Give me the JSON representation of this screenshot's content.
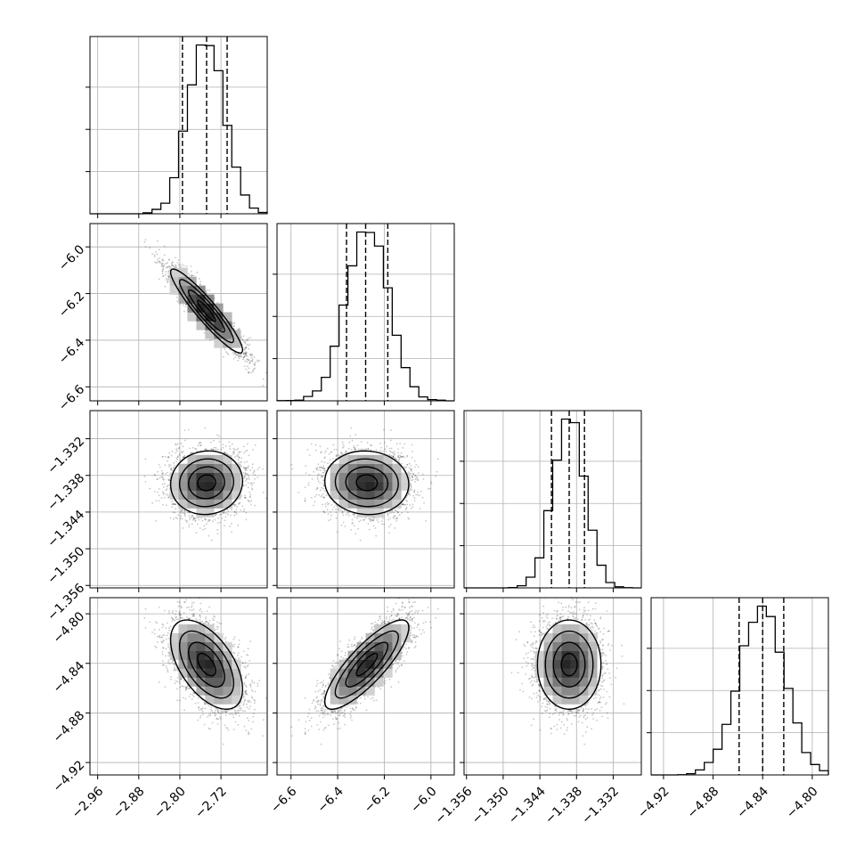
{
  "chart_data": {
    "type": "corner",
    "grid": true,
    "parameters": [
      {
        "range": [
          -2.975,
          -2.63
        ],
        "ticks": [
          -2.96,
          -2.88,
          -2.8,
          -2.72
        ],
        "tick_labels": [
          "−2.96",
          "−2.88",
          "−2.80",
          "−2.72"
        ],
        "quantiles": [
          -2.795,
          -2.748,
          -2.708
        ],
        "mean": -2.748,
        "sd": 0.035
      },
      {
        "range": [
          -6.66,
          -5.9
        ],
        "ticks": [
          -6.6,
          -6.4,
          -6.2,
          -6.0
        ],
        "tick_labels": [
          "−6.6",
          "−6.4",
          "−6.2",
          "−6.0"
        ],
        "quantiles": [
          -6.362,
          -6.28,
          -6.185
        ],
        "mean": -6.275,
        "sd": 0.09
      },
      {
        "range": [
          -1.3564,
          -1.3274
        ],
        "ticks": [
          -1.356,
          -1.35,
          -1.344,
          -1.338,
          -1.332
        ],
        "tick_labels": [
          "−1.356",
          "−1.350",
          "−1.344",
          "−1.338",
          "−1.332"
        ],
        "quantiles": [
          -1.3421,
          -1.3392,
          -1.3367
        ],
        "mean": -1.3392,
        "sd": 0.0026
      },
      {
        "range": [
          -4.93,
          -4.787
        ],
        "ticks": [
          -4.92,
          -4.88,
          -4.84,
          -4.8
        ],
        "tick_labels": [
          "−4.92",
          "−4.88",
          "−4.84",
          "−4.80"
        ],
        "quantiles": [
          -4.859,
          -4.84,
          -4.823
        ],
        "mean": -4.841,
        "sd": 0.018
      }
    ],
    "correlations": [
      [
        1,
        -0.93,
        0.05,
        -0.55
      ],
      [
        -0.93,
        1,
        -0.05,
        0.83
      ],
      [
        0.05,
        -0.05,
        1,
        0.0
      ],
      [
        -0.55,
        0.83,
        0.0,
        1
      ]
    ],
    "histogram_bins": 20,
    "contour_levels": [
      0.393,
      0.865,
      0.989
    ]
  }
}
